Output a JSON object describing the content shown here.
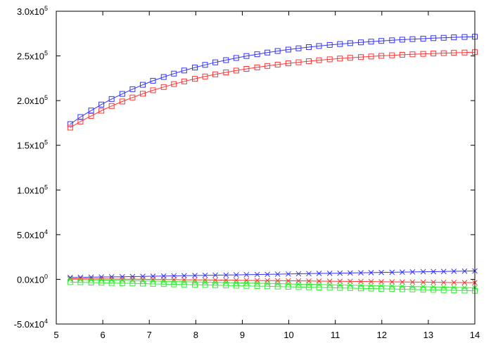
{
  "chart_data": {
    "type": "line",
    "title": "",
    "xlabel": "",
    "ylabel": "",
    "xlim": [
      5,
      14
    ],
    "ylim": [
      -50000,
      300000
    ],
    "grid": false,
    "legend": null,
    "x_ticks": [
      5,
      6,
      7,
      8,
      9,
      10,
      11,
      12,
      13,
      14
    ],
    "x_tick_labels": [
      "5",
      "6",
      "7",
      "8",
      "9",
      "10",
      "11",
      "12",
      "13",
      "14"
    ],
    "y_ticks": [
      -50000,
      0,
      50000,
      100000,
      150000,
      200000,
      250000,
      300000
    ],
    "y_tick_labels": [
      {
        "mantissa": "-5.0x10",
        "exp": "4"
      },
      {
        "mantissa": "0.0x10",
        "exp": "0"
      },
      {
        "mantissa": "5.0x10",
        "exp": "4"
      },
      {
        "mantissa": "1.0x10",
        "exp": "5"
      },
      {
        "mantissa": "1.5x10",
        "exp": "5"
      },
      {
        "mantissa": "2.0x10",
        "exp": "5"
      },
      {
        "mantissa": "2.5x10",
        "exp": "5"
      },
      {
        "mantissa": "3.0x10",
        "exp": "5"
      }
    ],
    "x": [
      5.3,
      5.52,
      5.75,
      5.97,
      6.19,
      6.42,
      6.64,
      6.86,
      7.08,
      7.31,
      7.53,
      7.75,
      7.98,
      8.2,
      8.42,
      8.65,
      8.87,
      9.09,
      9.32,
      9.54,
      9.76,
      9.99,
      10.21,
      10.43,
      10.65,
      10.88,
      11.1,
      11.32,
      11.55,
      11.77,
      11.99,
      12.22,
      12.44,
      12.66,
      12.89,
      13.11,
      13.33,
      13.55,
      13.78,
      14.0
    ],
    "series": [
      {
        "name": "blue-squares",
        "color": "#3333ff",
        "marker": "square",
        "values": [
          173700,
          181600,
          188900,
          195600,
          201800,
          207500,
          212800,
          217700,
          222200,
          226400,
          230200,
          233700,
          237000,
          240000,
          242800,
          245300,
          247700,
          249900,
          251900,
          253800,
          255500,
          257100,
          258500,
          259900,
          261100,
          262300,
          263300,
          264300,
          265200,
          266000,
          266800,
          267500,
          268200,
          268800,
          269300,
          269900,
          270300,
          270800,
          271200,
          271500
        ]
      },
      {
        "name": "red-squares",
        "color": "#ff3333",
        "marker": "square",
        "values": [
          169800,
          176600,
          182900,
          188700,
          194000,
          199000,
          203500,
          207700,
          211600,
          215200,
          218500,
          221500,
          224400,
          227000,
          229400,
          231600,
          233600,
          235500,
          237200,
          238800,
          240300,
          241700,
          242900,
          244100,
          245200,
          246200,
          247100,
          247900,
          248700,
          249400,
          250100,
          250700,
          251300,
          251800,
          252300,
          252700,
          253100,
          253500,
          253800,
          254200
        ]
      },
      {
        "name": "blue-crosses",
        "color": "#3333ff",
        "marker": "cross",
        "values": [
          2000,
          2200,
          2400,
          2600,
          2800,
          2900,
          3100,
          3300,
          3500,
          3700,
          3900,
          4100,
          4300,
          4500,
          4700,
          4800,
          5000,
          5200,
          5400,
          5600,
          5800,
          6000,
          6200,
          6400,
          6600,
          6700,
          6900,
          7100,
          7300,
          7500,
          7700,
          7900,
          8100,
          8300,
          8500,
          8600,
          8800,
          9000,
          9200,
          9400
        ]
      },
      {
        "name": "red-crosses",
        "color": "#ff3333",
        "marker": "cross",
        "values": [
          800,
          700,
          600,
          500,
          300,
          200,
          100,
          0,
          -100,
          -200,
          -400,
          -500,
          -600,
          -700,
          -800,
          -900,
          -1100,
          -1200,
          -1300,
          -1400,
          -1500,
          -1600,
          -1700,
          -1900,
          -2000,
          -2100,
          -2200,
          -2300,
          -2400,
          -2500,
          -2700,
          -2800,
          -2900,
          -3000,
          -3100,
          -3200,
          -3400,
          -3500,
          -3600,
          -3700
        ]
      },
      {
        "name": "green-crosses",
        "color": "#33ee33",
        "marker": "cross",
        "values": [
          0,
          -200,
          -500,
          -700,
          -1000,
          -1200,
          -1400,
          -1700,
          -1900,
          -2200,
          -2400,
          -2700,
          -2900,
          -3100,
          -3400,
          -3600,
          -3900,
          -4100,
          -4300,
          -4600,
          -4800,
          -5100,
          -5300,
          -5500,
          -5800,
          -6000,
          -6300,
          -6500,
          -6700,
          -7000,
          -7200,
          -7500,
          -7700,
          -8000,
          -8200,
          -8400,
          -8700,
          -8900,
          -9200,
          -9400
        ]
      },
      {
        "name": "green-squares",
        "color": "#33ee33",
        "marker": "square",
        "values": [
          -3100,
          -3300,
          -3600,
          -3800,
          -4100,
          -4300,
          -4600,
          -4800,
          -5100,
          -5300,
          -5600,
          -5800,
          -6100,
          -6300,
          -6600,
          -6800,
          -7100,
          -7300,
          -7600,
          -7800,
          -8100,
          -8300,
          -8600,
          -8800,
          -9100,
          -9300,
          -9600,
          -9800,
          -10100,
          -10300,
          -10600,
          -10800,
          -11100,
          -11300,
          -11600,
          -11800,
          -12100,
          -12300,
          -12600,
          -12800
        ]
      }
    ]
  }
}
